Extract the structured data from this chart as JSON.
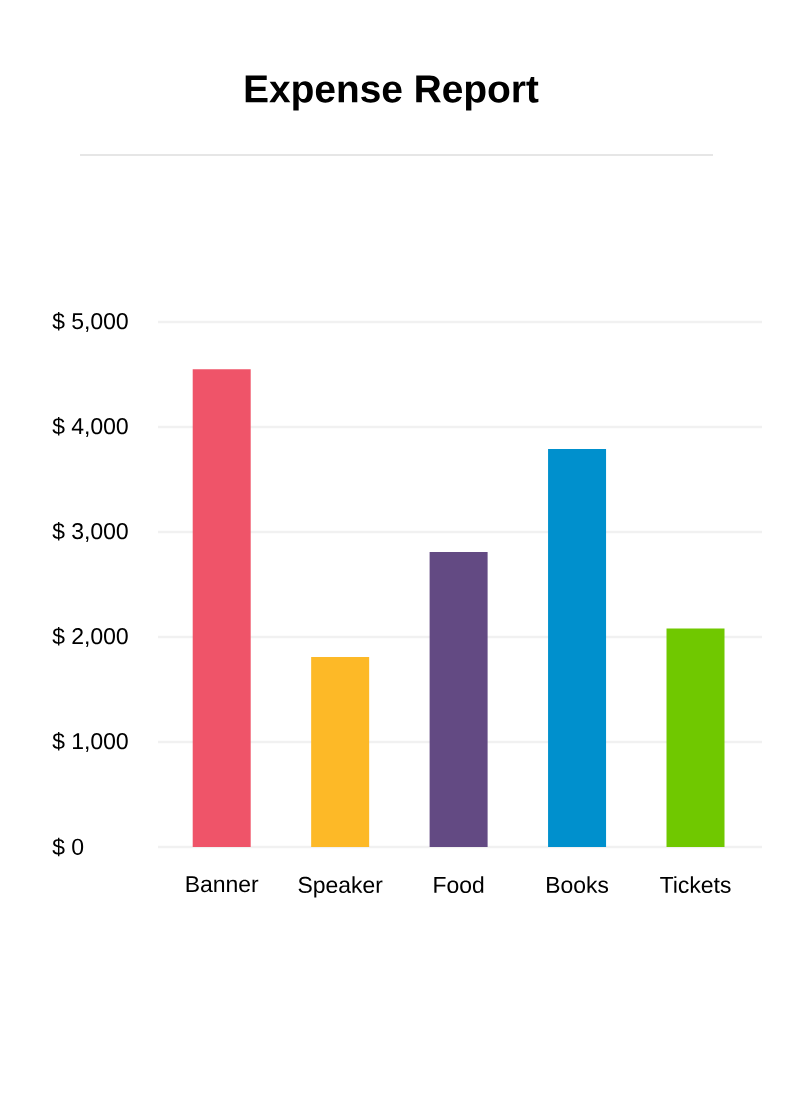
{
  "chart_data": {
    "type": "bar",
    "title": "Expense Report",
    "categories": [
      "Banner",
      "Speaker",
      "Food",
      "Books",
      "Tickets"
    ],
    "values": [
      4550,
      1810,
      2810,
      3790,
      2080
    ],
    "colors": [
      "#ef5469",
      "#fdb927",
      "#634a83",
      "#0090cd",
      "#70c800"
    ],
    "ylim": [
      0,
      5000
    ],
    "yticks": [
      {
        "value": 0,
        "label": "$ 0"
      },
      {
        "value": 1000,
        "label": "$ 1,000"
      },
      {
        "value": 2000,
        "label": "$ 2,000"
      },
      {
        "value": 3000,
        "label": "$ 3,000"
      },
      {
        "value": 4000,
        "label": "$ 4,000"
      },
      {
        "value": 5000,
        "label": "$ 5,000"
      }
    ],
    "grid": "y"
  }
}
